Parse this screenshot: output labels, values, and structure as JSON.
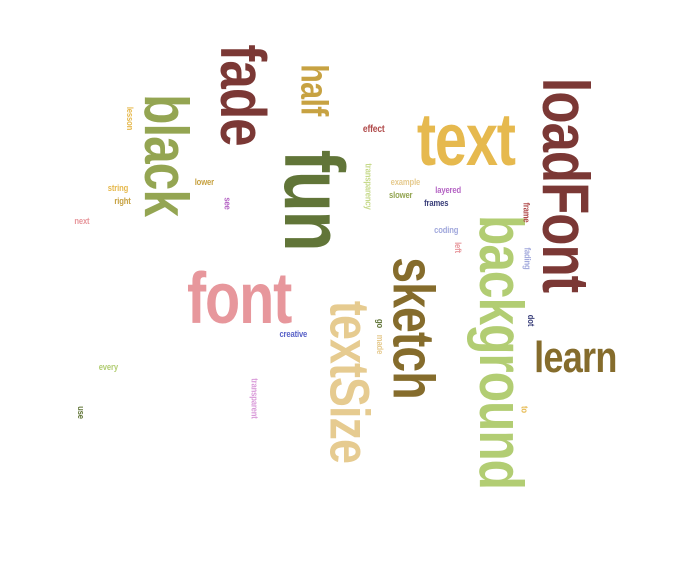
{
  "words": [
    {
      "text": "fade",
      "color": "#7b3835",
      "orientation": "vertical"
    },
    {
      "text": "fun",
      "color": "#617538",
      "orientation": "vertical"
    },
    {
      "text": "half",
      "color": "#c7a242",
      "orientation": "vertical"
    },
    {
      "text": "black",
      "color": "#94a552",
      "orientation": "vertical"
    },
    {
      "text": "text",
      "color": "#e6b94e",
      "orientation": "horizontal"
    },
    {
      "text": "loadFont",
      "color": "#7b3835",
      "orientation": "vertical"
    },
    {
      "text": "background",
      "color": "#b2cd73",
      "orientation": "vertical"
    },
    {
      "text": "sketch",
      "color": "#856c2c",
      "orientation": "vertical"
    },
    {
      "text": "textSize",
      "color": "#e6cb90",
      "orientation": "vertical"
    },
    {
      "text": "font",
      "color": "#e7979c",
      "orientation": "horizontal"
    },
    {
      "text": "learn",
      "color": "#856c2c",
      "orientation": "horizontal"
    },
    {
      "text": "effect",
      "color": "#b04a4a",
      "orientation": "horizontal"
    },
    {
      "text": "transparency",
      "color": "#c6d98a",
      "orientation": "vertical"
    },
    {
      "text": "example",
      "color": "#e6cb90",
      "orientation": "horizontal"
    },
    {
      "text": "layered",
      "color": "#b565c4",
      "orientation": "horizontal"
    },
    {
      "text": "slower",
      "color": "#94a552",
      "orientation": "horizontal"
    },
    {
      "text": "frames",
      "color": "#3a3f7a",
      "orientation": "horizontal"
    },
    {
      "text": "lower",
      "color": "#c7a242",
      "orientation": "horizontal"
    },
    {
      "text": "lesson",
      "color": "#e6b94e",
      "orientation": "vertical"
    },
    {
      "text": "string",
      "color": "#e6b94e",
      "orientation": "horizontal"
    },
    {
      "text": "right",
      "color": "#c7a242",
      "orientation": "horizontal"
    },
    {
      "text": "see",
      "color": "#b565c4",
      "orientation": "vertical"
    },
    {
      "text": "next",
      "color": "#e7979c",
      "orientation": "horizontal"
    },
    {
      "text": "coding",
      "color": "#a1a8dc",
      "orientation": "horizontal"
    },
    {
      "text": "left",
      "color": "#e7979c",
      "orientation": "vertical"
    },
    {
      "text": "frame",
      "color": "#b04a4a",
      "orientation": "vertical"
    },
    {
      "text": "fading",
      "color": "#a1a8dc",
      "orientation": "vertical"
    },
    {
      "text": "dot",
      "color": "#3a3f7a",
      "orientation": "vertical"
    },
    {
      "text": "go",
      "color": "#617538",
      "orientation": "vertical"
    },
    {
      "text": "made",
      "color": "#e6cb90",
      "orientation": "vertical"
    },
    {
      "text": "creative",
      "color": "#5a63c8",
      "orientation": "horizontal"
    },
    {
      "text": "every",
      "color": "#b2cd73",
      "orientation": "horizontal"
    },
    {
      "text": "transparent",
      "color": "#d99ad9",
      "orientation": "vertical"
    },
    {
      "text": "to",
      "color": "#e6b94e",
      "orientation": "vertical"
    },
    {
      "text": "use",
      "color": "#617538",
      "orientation": "vertical"
    }
  ]
}
